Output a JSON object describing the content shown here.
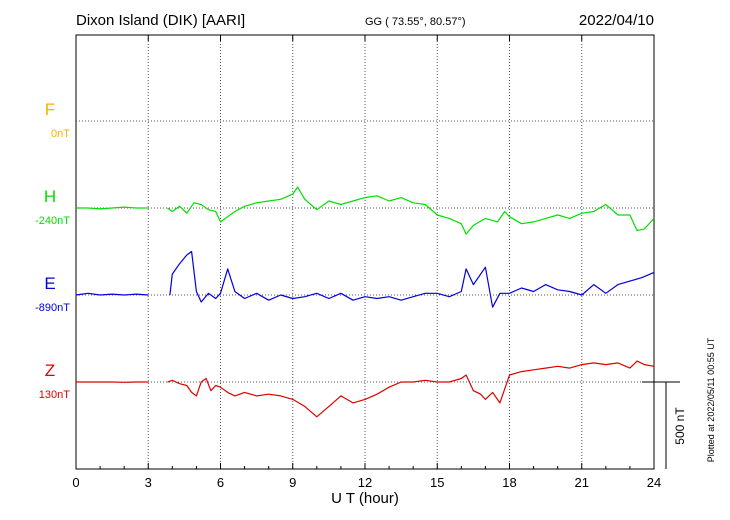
{
  "header": {
    "station": "Dixon Island (DIK)  [AARI]",
    "coords": "GG ( 73.55°,  80.57°)",
    "date": "2022/04/10"
  },
  "plotted_note": "Plotted at 2022/05/11 00:55 UT",
  "scale_bar_label": "500 nT",
  "chart_data": {
    "type": "line",
    "title": "Dixon Island (DIK)  [AARI]",
    "xlabel": "U T (hour)",
    "ylabel": "",
    "xlim": [
      0,
      24
    ],
    "x_ticks": [
      "0",
      "3",
      "6",
      "9",
      "12",
      "15",
      "18",
      "21",
      "24"
    ],
    "grid": true,
    "scale_bar_nT": 500,
    "components": [
      {
        "letter": "F",
        "baseline_label": "0nT",
        "color": "#f0b400",
        "has_data": false
      },
      {
        "letter": "H",
        "baseline_label": "-240nT",
        "color": "#00e000",
        "has_data": true
      },
      {
        "letter": "E",
        "baseline_label": "-890nT",
        "color": "#0000e0",
        "has_data": true
      },
      {
        "letter": "Z",
        "baseline_label": "130nT",
        "color": "#e00000",
        "has_data": true
      }
    ],
    "series": [
      {
        "name": "H",
        "x": [
          0,
          0.5,
          1,
          1.5,
          2,
          2.5,
          3,
          3.8,
          4,
          4.3,
          4.6,
          4.9,
          5.2,
          5.5,
          5.8,
          6,
          6.3,
          6.6,
          7,
          7.5,
          8,
          8.5,
          9,
          9.2,
          9.5,
          10,
          10.5,
          11,
          11.5,
          12,
          12.5,
          13,
          13.5,
          14,
          14.5,
          15,
          15.5,
          16,
          16.2,
          16.5,
          17,
          17.5,
          17.8,
          18,
          18.5,
          19,
          19.5,
          20,
          20.5,
          21,
          21.5,
          22,
          22.5,
          23,
          23.3,
          23.6,
          24
        ],
        "values": [
          0,
          0,
          -5,
          0,
          5,
          0,
          0,
          0,
          -20,
          10,
          -30,
          30,
          20,
          -10,
          -20,
          -80,
          -50,
          -20,
          10,
          30,
          40,
          50,
          80,
          120,
          50,
          -10,
          40,
          20,
          40,
          60,
          70,
          40,
          60,
          30,
          20,
          -40,
          -60,
          -90,
          -150,
          -100,
          -60,
          -80,
          -20,
          -50,
          -90,
          -80,
          -60,
          -40,
          -60,
          -30,
          -20,
          20,
          -40,
          -40,
          -130,
          -120,
          -60
        ]
      },
      {
        "name": "E",
        "x": [
          0,
          0.5,
          1,
          1.5,
          2,
          2.5,
          3,
          3.9,
          4,
          4.3,
          4.6,
          4.8,
          5,
          5.2,
          5.5,
          5.8,
          6,
          6.3,
          6.6,
          7,
          7.5,
          8,
          8.5,
          9,
          9.5,
          10,
          10.5,
          11,
          11.5,
          12,
          12.5,
          13,
          13.5,
          14,
          14.5,
          15,
          15.5,
          16,
          16.2,
          16.5,
          17,
          17.3,
          17.6,
          18,
          18.5,
          19,
          19.5,
          20,
          20.5,
          21,
          21.5,
          22,
          22.5,
          23,
          23.5,
          24
        ],
        "values": [
          0,
          10,
          0,
          5,
          0,
          5,
          0,
          0,
          120,
          180,
          230,
          250,
          20,
          -40,
          10,
          -20,
          10,
          150,
          20,
          -20,
          10,
          -30,
          0,
          -20,
          -10,
          10,
          -20,
          10,
          -30,
          -10,
          -20,
          -10,
          -30,
          -10,
          10,
          10,
          -10,
          20,
          150,
          60,
          160,
          -70,
          10,
          10,
          40,
          20,
          60,
          30,
          20,
          0,
          60,
          10,
          60,
          80,
          100,
          130
        ]
      },
      {
        "name": "Z",
        "x": [
          0,
          0.5,
          1,
          1.5,
          2,
          2.5,
          3,
          3.8,
          4,
          4.3,
          4.6,
          4.8,
          5,
          5.2,
          5.4,
          5.6,
          5.8,
          6,
          6.3,
          6.6,
          7,
          7.5,
          8,
          8.5,
          9,
          9.5,
          10,
          10.5,
          11,
          11.5,
          12,
          12.5,
          13,
          13.5,
          14,
          14.5,
          15,
          15.5,
          16,
          16.2,
          16.5,
          16.8,
          17,
          17.3,
          17.6,
          18,
          18.5,
          19,
          19.5,
          20,
          20.5,
          21,
          21.5,
          22,
          22.5,
          23,
          23.3,
          23.6,
          24
        ],
        "values": [
          0,
          0,
          0,
          0,
          -2,
          0,
          0,
          0,
          10,
          -10,
          -20,
          -60,
          -80,
          0,
          20,
          -50,
          -20,
          -30,
          -60,
          -80,
          -60,
          -80,
          -70,
          -80,
          -100,
          -140,
          -200,
          -140,
          -80,
          -120,
          -100,
          -70,
          -30,
          0,
          0,
          10,
          0,
          0,
          20,
          40,
          -50,
          -70,
          -100,
          -60,
          -120,
          40,
          60,
          70,
          80,
          90,
          80,
          100,
          110,
          100,
          110,
          80,
          120,
          100,
          90
        ]
      }
    ]
  }
}
